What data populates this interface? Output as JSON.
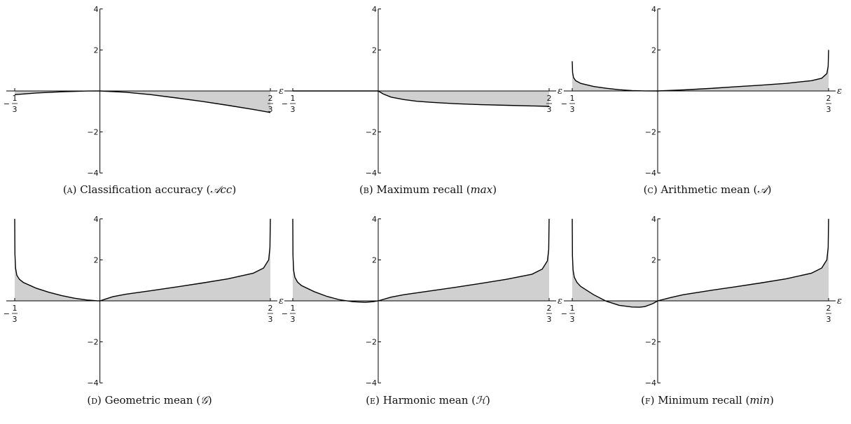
{
  "chart_data": [
    {
      "type": "area",
      "caption": {
        "label": "(A)",
        "text": "Classification accuracy",
        "math": "𝒜cc"
      },
      "xlabel": "ε",
      "xlim": [
        -0.3333,
        0.6667
      ],
      "ylim": [
        -4,
        4
      ],
      "yticks": [
        "4",
        "2",
        "-2",
        "-4"
      ],
      "xticks": [
        "-1/3",
        "2/3"
      ],
      "series": [
        {
          "x": [
            -0.3333,
            -0.25,
            -0.15,
            -0.05,
            0,
            0.1,
            0.2,
            0.3,
            0.4,
            0.5,
            0.6,
            0.6667
          ],
          "y": [
            -0.18,
            -0.1,
            -0.04,
            -0.005,
            0,
            -0.06,
            -0.18,
            -0.34,
            -0.51,
            -0.7,
            -0.9,
            -1.05
          ]
        }
      ]
    },
    {
      "type": "area",
      "caption": {
        "label": "(B)",
        "text": "Maximum recall",
        "math": "max"
      },
      "xlabel": "ε",
      "xlim": [
        -0.3333,
        0.6667
      ],
      "ylim": [
        -4,
        4
      ],
      "yticks": [
        "4",
        "2",
        "-2",
        "-4"
      ],
      "xticks": [
        "-1/3",
        "2/3"
      ],
      "series": [
        {
          "x": [
            -0.3333,
            -0.2,
            -0.1,
            0,
            0.02,
            0.05,
            0.1,
            0.15,
            0.2,
            0.3,
            0.4,
            0.5,
            0.6,
            0.6667
          ],
          "y": [
            0,
            0,
            0,
            0,
            -0.15,
            -0.3,
            -0.42,
            -0.5,
            -0.55,
            -0.62,
            -0.67,
            -0.7,
            -0.73,
            -0.75
          ]
        }
      ]
    },
    {
      "type": "area",
      "caption": {
        "label": "(C)",
        "text": "Arithmetic mean",
        "math": "𝒜"
      },
      "xlabel": "ε",
      "xlim": [
        -0.3333,
        0.6667
      ],
      "ylim": [
        -4,
        4
      ],
      "yticks": [
        "4",
        "2",
        "-2",
        "-4"
      ],
      "xticks": [
        "-1/3",
        "2/3"
      ],
      "series": [
        {
          "x": [
            -0.3333,
            -0.332,
            -0.328,
            -0.32,
            -0.3,
            -0.25,
            -0.2,
            -0.15,
            -0.1,
            -0.05,
            0,
            0.1,
            0.2,
            0.3,
            0.4,
            0.5,
            0.6,
            0.64,
            0.66,
            0.665,
            0.6667
          ],
          "y": [
            1.45,
            0.9,
            0.65,
            0.5,
            0.37,
            0.22,
            0.13,
            0.06,
            0.02,
            0.004,
            0,
            0.05,
            0.12,
            0.2,
            0.28,
            0.37,
            0.5,
            0.62,
            0.85,
            1.2,
            2.0
          ]
        }
      ]
    },
    {
      "type": "area",
      "caption": {
        "label": "(D)",
        "text": "Geometric mean",
        "math": "𝒢"
      },
      "xlabel": "ε",
      "xlim": [
        -0.3333,
        0.6667
      ],
      "ylim": [
        -4,
        4
      ],
      "yticks": [
        "4",
        "2",
        "-2",
        "-4"
      ],
      "xticks": [
        "-1/3",
        "2/3"
      ],
      "series": [
        {
          "x": [
            -0.3333,
            -0.3325,
            -0.33,
            -0.325,
            -0.315,
            -0.3,
            -0.25,
            -0.2,
            -0.15,
            -0.1,
            -0.05,
            -0.01,
            0,
            0.05,
            0.1,
            0.2,
            0.3,
            0.4,
            0.5,
            0.6,
            0.64,
            0.66,
            0.665,
            0.6667
          ],
          "y": [
            4.0,
            2.3,
            1.6,
            1.25,
            1.05,
            0.9,
            0.62,
            0.42,
            0.26,
            0.13,
            0.04,
            0.005,
            0,
            0.2,
            0.32,
            0.5,
            0.68,
            0.87,
            1.07,
            1.35,
            1.6,
            2.0,
            2.6,
            4.0
          ]
        }
      ]
    },
    {
      "type": "area",
      "caption": {
        "label": "(E)",
        "text": "Harmonic mean",
        "math": "ℋ"
      },
      "xlabel": "ε",
      "xlim": [
        -0.3333,
        0.6667
      ],
      "ylim": [
        -4,
        4
      ],
      "yticks": [
        "4",
        "2",
        "-2",
        "-4"
      ],
      "xticks": [
        "-1/3",
        "2/3"
      ],
      "series": [
        {
          "x": [
            -0.3333,
            -0.3325,
            -0.33,
            -0.325,
            -0.315,
            -0.3,
            -0.25,
            -0.2,
            -0.15,
            -0.1,
            -0.05,
            -0.02,
            0,
            0.05,
            0.1,
            0.2,
            0.3,
            0.4,
            0.5,
            0.6,
            0.64,
            0.66,
            0.665,
            0.6667
          ],
          "y": [
            4.0,
            2.2,
            1.5,
            1.15,
            0.92,
            0.75,
            0.45,
            0.22,
            0.05,
            -0.04,
            -0.07,
            -0.04,
            0,
            0.18,
            0.3,
            0.48,
            0.66,
            0.85,
            1.05,
            1.3,
            1.55,
            1.95,
            2.5,
            4.0
          ]
        }
      ]
    },
    {
      "type": "area",
      "caption": {
        "label": "(F)",
        "text": "Minimum recall",
        "math": "min"
      },
      "xlabel": "ε",
      "xlim": [
        -0.3333,
        0.6667
      ],
      "ylim": [
        -4,
        4
      ],
      "yticks": [
        "4",
        "2",
        "-2",
        "-4"
      ],
      "xticks": [
        "-1/3",
        "2/3"
      ],
      "series": [
        {
          "x": [
            -0.3333,
            -0.3325,
            -0.33,
            -0.325,
            -0.315,
            -0.3,
            -0.25,
            -0.2,
            -0.15,
            -0.1,
            -0.07,
            -0.05,
            -0.02,
            0,
            0.05,
            0.1,
            0.2,
            0.3,
            0.4,
            0.5,
            0.6,
            0.64,
            0.66,
            0.665,
            0.6667
          ],
          "y": [
            4.0,
            2.2,
            1.5,
            1.15,
            0.9,
            0.7,
            0.3,
            -0.02,
            -0.22,
            -0.3,
            -0.31,
            -0.28,
            -0.14,
            0,
            0.16,
            0.3,
            0.5,
            0.68,
            0.87,
            1.07,
            1.35,
            1.6,
            2.0,
            2.6,
            4.0
          ]
        }
      ]
    }
  ]
}
